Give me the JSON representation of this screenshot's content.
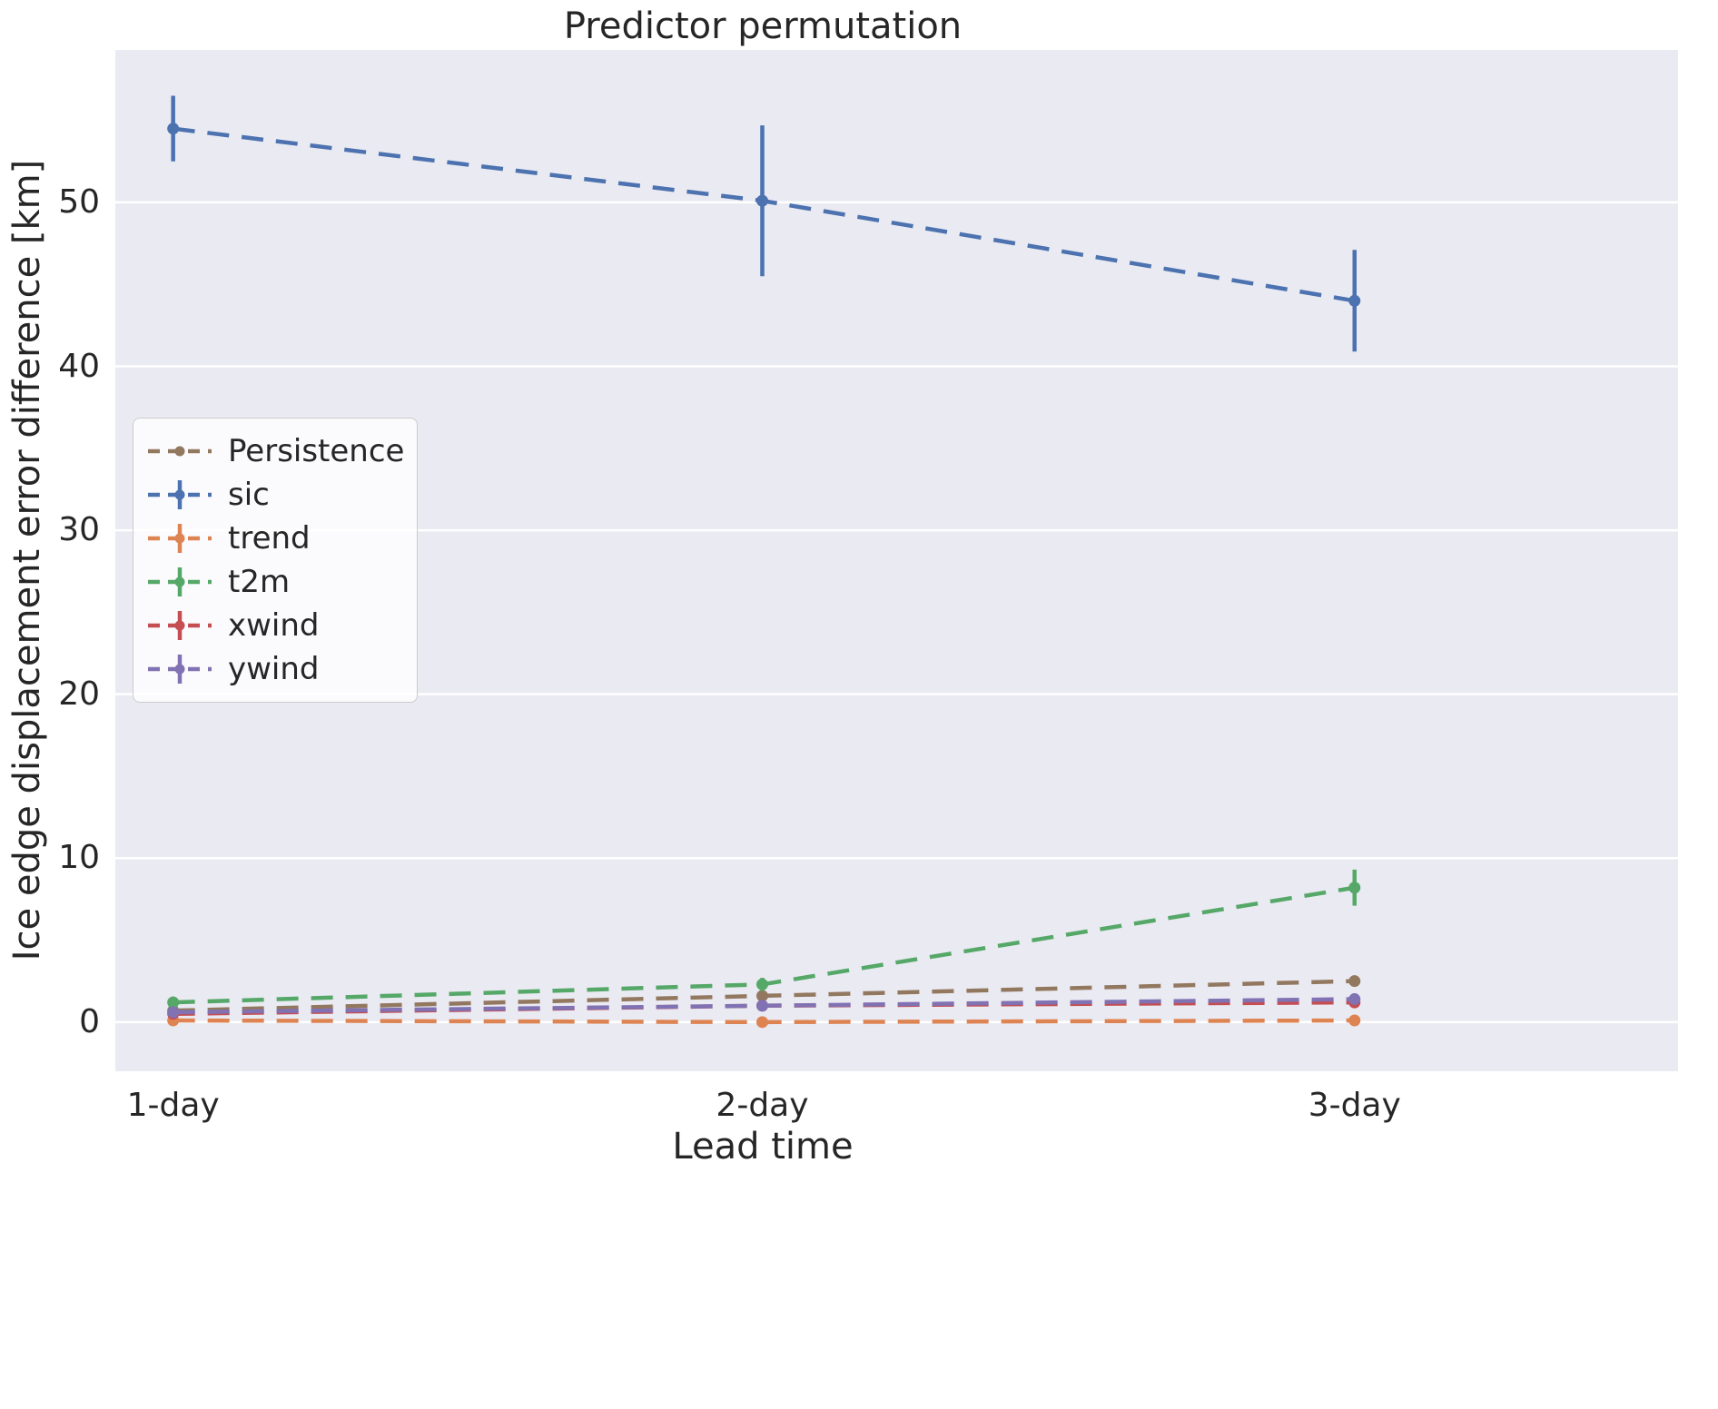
{
  "background_color": "#EAEAF2",
  "grid_color": "#FFFFFF",
  "text_color": "#262626",
  "chart_data": {
    "type": "line",
    "title": "Predictor permutation",
    "xlabel": "Lead time",
    "ylabel": "Ice edge displacement error difference [km]",
    "categories": [
      "1-day",
      "2-day",
      "3-day"
    ],
    "yticks": [
      0,
      10,
      20,
      30,
      40,
      50
    ],
    "ylim": [
      -3,
      59.3
    ],
    "grid": "horizontal",
    "line_style": "dashed",
    "legend_position": "upper-left",
    "series": [
      {
        "name": "Persistence",
        "color": "#937860",
        "values": [
          0.7,
          1.6,
          2.5
        ],
        "errors": [
          0.1,
          0.1,
          0.2
        ],
        "legend_errorbar": false
      },
      {
        "name": "sic",
        "color": "#4C72B0",
        "values": [
          54.5,
          50.1,
          44.0
        ],
        "errors": [
          2.0,
          4.6,
          3.1
        ],
        "legend_errorbar": true
      },
      {
        "name": "trend",
        "color": "#DD8452",
        "values": [
          0.1,
          0.0,
          0.1
        ],
        "errors": [
          0.15,
          0.1,
          0.15
        ],
        "legend_errorbar": true
      },
      {
        "name": "t2m",
        "color": "#55A868",
        "values": [
          1.2,
          2.3,
          8.2
        ],
        "errors": [
          0.35,
          0.4,
          1.1
        ],
        "legend_errorbar": true
      },
      {
        "name": "xwind",
        "color": "#C44E52",
        "values": [
          0.5,
          1.0,
          1.2
        ],
        "errors": [
          0.3,
          0.25,
          0.35
        ],
        "legend_errorbar": true
      },
      {
        "name": "ywind",
        "color": "#8172B3",
        "values": [
          0.6,
          1.0,
          1.4
        ],
        "errors": [
          0.3,
          0.25,
          0.35
        ],
        "legend_errorbar": true
      }
    ]
  }
}
